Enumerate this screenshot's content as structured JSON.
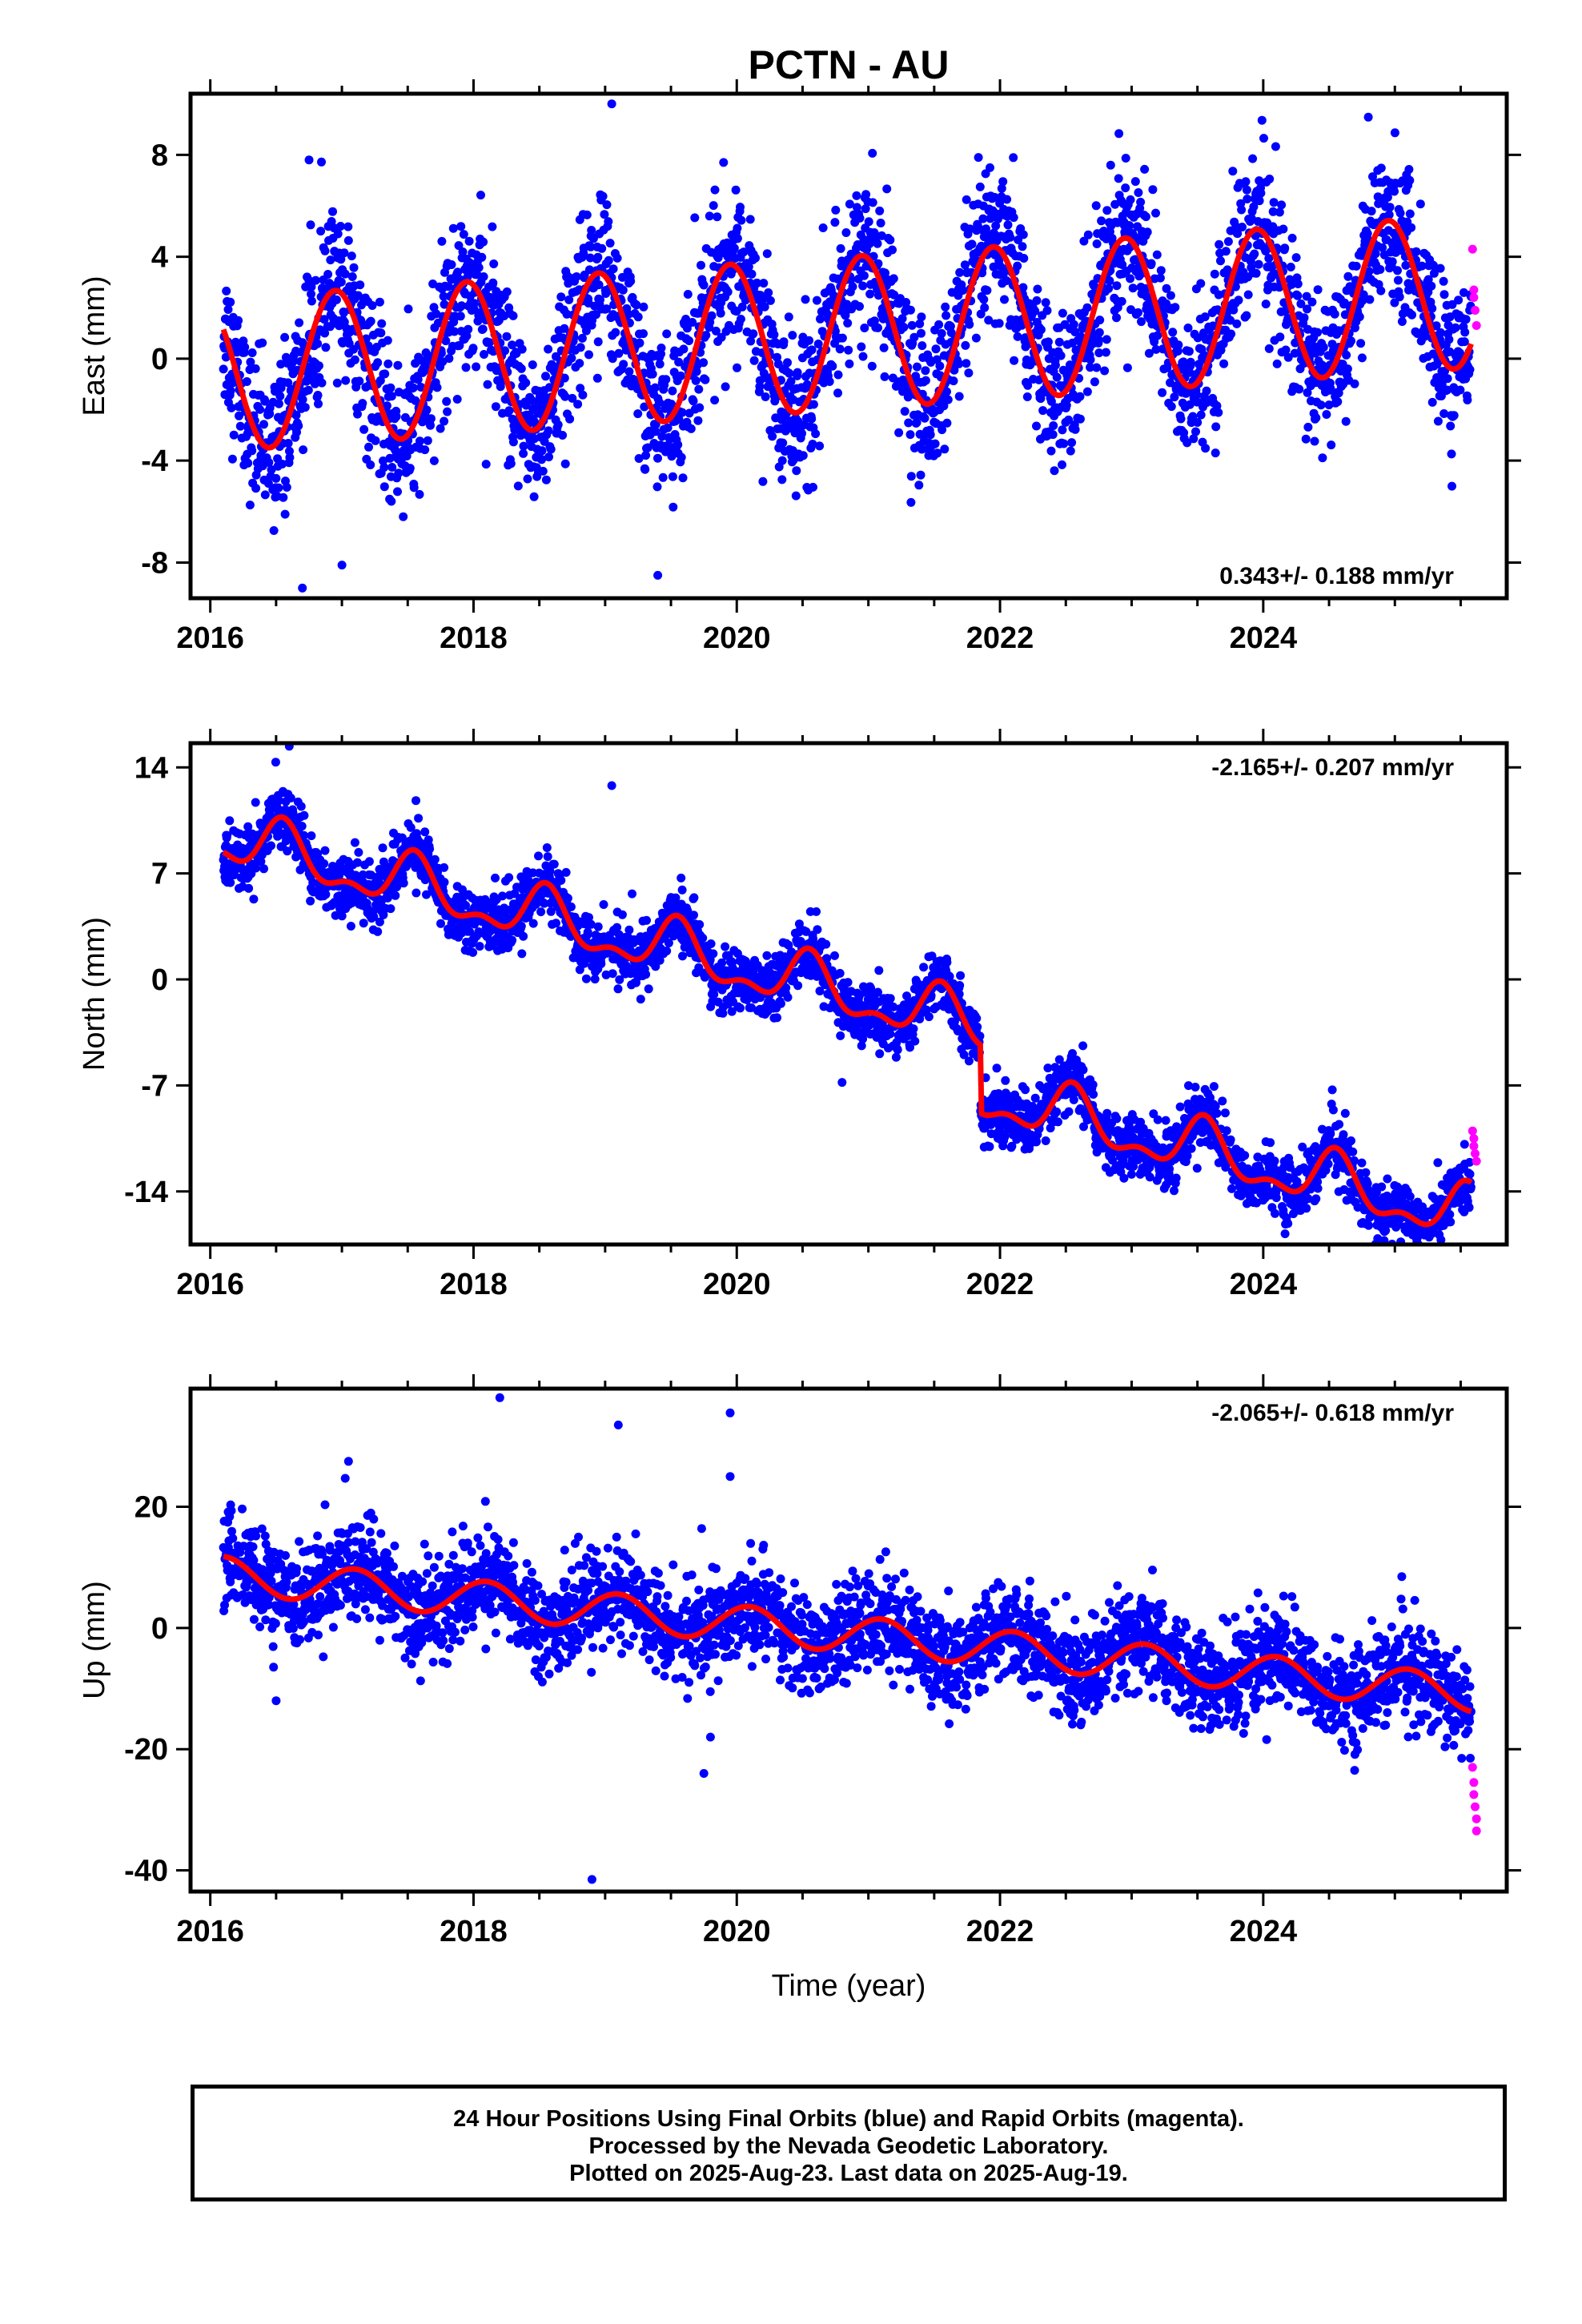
{
  "title": "PCTN - AU",
  "footer": {
    "line1": "24 Hour Positions Using Final Orbits (blue) and Rapid Orbits (magenta).",
    "line2": "Processed by the Nevada Geodetic Laboratory.",
    "line3": "Plotted on 2025-Aug-23. Last data on 2025-Aug-19."
  },
  "colors": {
    "final": "#0000ff",
    "rapid": "#ff00ff",
    "fit": "#ff0000",
    "frame": "#000000"
  },
  "chart_data": [
    {
      "type": "scatter",
      "ylabel": "East (mm)",
      "xlim": [
        2015.85,
        2025.85
      ],
      "ylim": [
        -9.4,
        10.4
      ],
      "yticks": [
        -8,
        -4,
        0,
        4,
        8
      ],
      "xticks": [
        2016,
        2018,
        2020,
        2022,
        2024
      ],
      "rate_label": "0.343+/- 0.188 mm/yr",
      "rate_position": "bottom-right",
      "model": {
        "offset": -0.65,
        "trend": 0.343,
        "ref_year": 2016.0,
        "annual_amp": 3.0,
        "annual_phase_year": 0.95,
        "semiannual_amp": 0.0,
        "scatter_sd": 1.5
      },
      "series": [
        {
          "name": "Final Orbits",
          "color": "blue",
          "x_start": 2016.1,
          "x_end": 2025.58
        },
        {
          "name": "Rapid Orbits",
          "color": "magenta",
          "x": [
            2025.59,
            2025.6,
            2025.6,
            2025.61,
            2025.62
          ],
          "y": [
            4.3,
            2.7,
            2.4,
            1.9,
            1.3
          ]
        }
      ],
      "outliers": {
        "x": [
          2019.05,
          2016.75,
          2019.9,
          2016.7,
          2017.0,
          2019.4
        ],
        "y": [
          10.0,
          7.8,
          7.7,
          -9.0,
          -8.1,
          -8.5
        ]
      }
    },
    {
      "type": "scatter",
      "ylabel": "North (mm)",
      "xlim": [
        2015.85,
        2025.85
      ],
      "ylim": [
        -17.5,
        15.6
      ],
      "yticks": [
        -14,
        -7,
        0,
        7,
        14
      ],
      "xticks": [
        2016,
        2018,
        2020,
        2022,
        2024
      ],
      "rate_label": "-2.165+/- 0.207 mm/yr",
      "rate_position": "top-right",
      "model": {
        "offset": 9.5,
        "trend": -2.165,
        "ref_year": 2016.0,
        "annual_amp": 1.6,
        "annual_phase_year": 0.55,
        "semiannual_amp": 0.8,
        "scatter_sd": 1.0,
        "step_year": 2021.85,
        "step_mm": -4.5
      },
      "series": [
        {
          "name": "Final Orbits",
          "color": "blue",
          "x_start": 2016.1,
          "x_end": 2025.58
        },
        {
          "name": "Rapid Orbits",
          "color": "magenta",
          "x": [
            2025.59,
            2025.6,
            2025.6,
            2025.61,
            2025.62
          ],
          "y": [
            -10.0,
            -10.5,
            -11.0,
            -11.5,
            -12.0
          ]
        }
      ],
      "outliers": {
        "x": [
          2016.6,
          2019.05,
          2020.8,
          2025.35
        ],
        "y": [
          15.4,
          12.8,
          -6.8,
          -17.2
        ]
      }
    },
    {
      "type": "scatter",
      "ylabel": "Up (mm)",
      "xlabel": "Time (year)",
      "xlim": [
        2015.85,
        2025.85
      ],
      "ylim": [
        -43.5,
        39.5
      ],
      "yticks": [
        -40,
        -20,
        0,
        20
      ],
      "xticks": [
        2016,
        2018,
        2020,
        2022,
        2024
      ],
      "rate_label": "-2.065+/- 0.618 mm/yr",
      "rate_position": "top-right",
      "model": {
        "offset": 9.0,
        "trend": -2.065,
        "ref_year": 2016.0,
        "annual_amp": 3.0,
        "annual_phase_year": 0.1,
        "semiannual_amp": 0.0,
        "scatter_sd": 4.0
      },
      "series": [
        {
          "name": "Final Orbits",
          "color": "blue",
          "x_start": 2016.1,
          "x_end": 2025.58
        },
        {
          "name": "Rapid Orbits",
          "color": "magenta",
          "x": [
            2025.59,
            2025.6,
            2025.6,
            2025.61,
            2025.62,
            2025.62
          ],
          "y": [
            -23.0,
            -25.5,
            -27.5,
            -29.5,
            -31.5,
            -33.5
          ]
        }
      ],
      "outliers": {
        "x": [
          2018.2,
          2019.95,
          2019.1,
          2019.95,
          2018.9,
          2019.75,
          2019.8,
          2016.5,
          2017.05
        ],
        "y": [
          38.0,
          35.5,
          33.5,
          25.0,
          -41.5,
          -24.0,
          -18.0,
          -12.0,
          27.5
        ]
      }
    }
  ]
}
